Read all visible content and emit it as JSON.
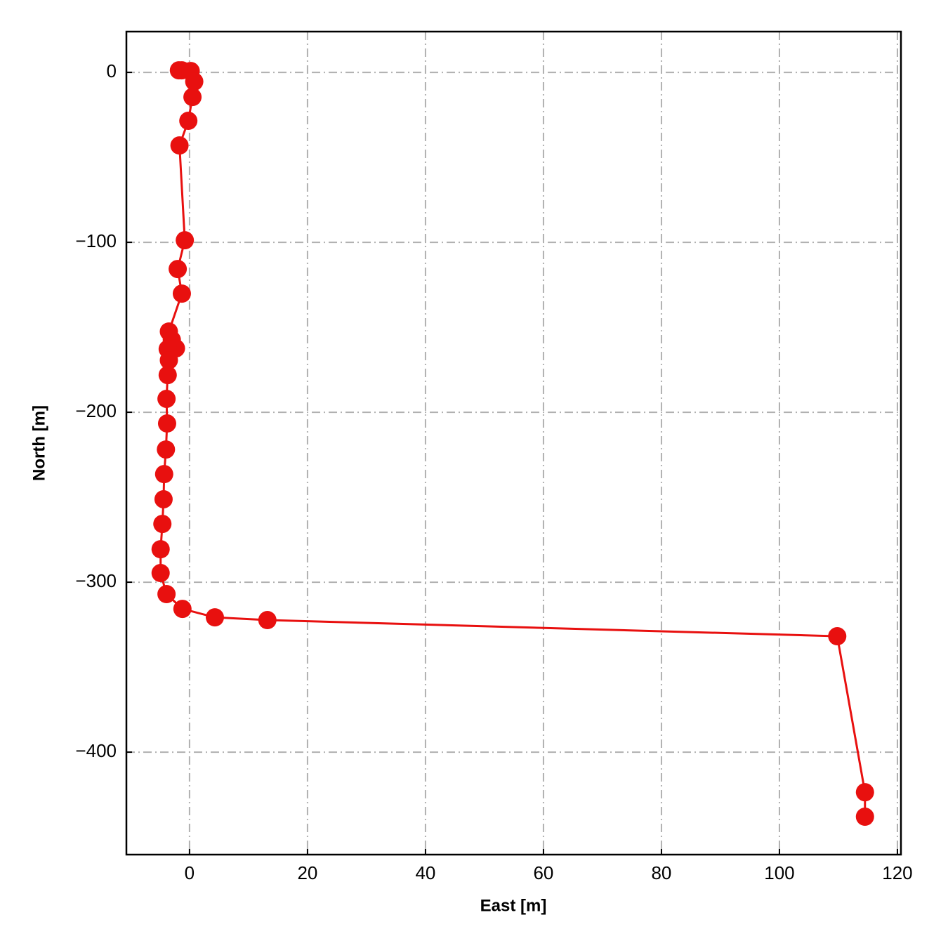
{
  "chart_data": {
    "type": "line",
    "xlabel": "East [m]",
    "ylabel": "North [m]",
    "x": [
      -1.8,
      -1.3,
      0.2,
      0.8,
      0.5,
      -0.2,
      -1.7,
      -0.8,
      -2.0,
      -1.3,
      -3.5,
      -3.0,
      -2.3,
      -3.7,
      -3.5,
      -3.7,
      -3.9,
      -3.8,
      -4.0,
      -4.3,
      -4.4,
      -4.6,
      -4.9,
      -4.9,
      -3.9,
      -1.2,
      4.3,
      13.2,
      109.8,
      114.5,
      114.5
    ],
    "series": [
      {
        "color": "#e8100f",
        "values": [
          1.2,
          1.2,
          0.8,
          -5.4,
          -14.5,
          -28.5,
          -43.0,
          -98.8,
          -115.7,
          -130.2,
          -152.5,
          -157.4,
          -162.4,
          -162.8,
          -169.4,
          -178.1,
          -192.1,
          -206.6,
          -221.9,
          -236.4,
          -251.2,
          -265.7,
          -280.6,
          -294.6,
          -307.0,
          -315.7,
          -320.7,
          -322.3,
          -331.8,
          -423.6,
          -438.0
        ]
      }
    ],
    "xlim": [
      -10.7,
      120.6
    ],
    "ylim": [
      -460.3,
      24
    ],
    "xticks": [
      0,
      20,
      40,
      60,
      80,
      100,
      120
    ],
    "yticks": [
      {
        "value": -400,
        "label": "−400"
      },
      {
        "value": -300,
        "label": "−300"
      },
      {
        "value": -200,
        "label": "−200"
      },
      {
        "value": -100,
        "label": "−100"
      },
      0
    ],
    "grid": true
  }
}
